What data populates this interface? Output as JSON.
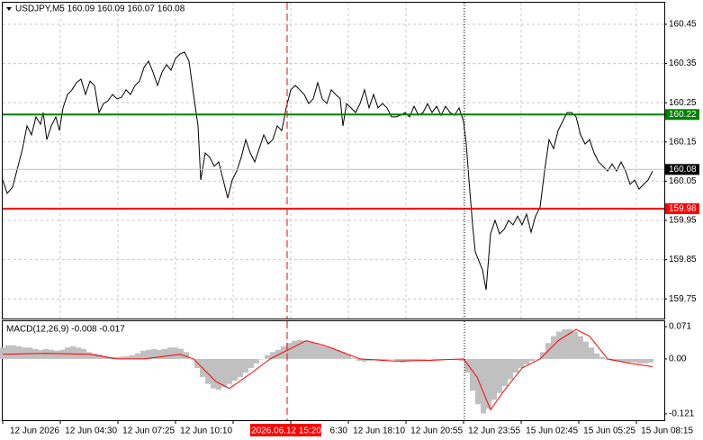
{
  "chart_data": [
    {
      "type": "line",
      "title": "USDJPY,M5  160.09 160.09 160.07 160.08",
      "color": "#000000",
      "x": [
        3,
        8,
        14,
        20,
        25,
        30,
        35,
        40,
        45,
        48,
        52,
        57,
        62,
        66,
        70,
        75,
        80,
        85,
        90,
        95,
        100,
        105,
        110,
        115,
        120,
        125,
        130,
        135,
        140,
        145,
        150,
        155,
        160,
        165,
        170,
        175,
        180,
        185,
        190,
        195,
        200,
        205,
        210,
        215,
        220,
        223,
        228,
        233,
        238,
        243,
        248,
        253,
        258,
        263,
        268,
        273,
        278,
        283,
        288,
        293,
        298,
        303,
        308,
        313,
        318,
        323,
        328,
        333,
        338,
        343,
        348,
        353,
        358,
        363,
        368,
        373,
        378,
        381,
        385,
        390,
        395,
        400,
        405,
        410,
        415,
        420,
        425,
        430,
        435,
        440,
        445,
        450,
        455,
        460,
        465,
        470,
        475,
        480,
        485,
        490,
        495,
        500,
        505,
        510,
        515,
        518,
        521,
        525,
        528,
        532,
        536,
        540,
        545,
        550,
        555,
        560,
        565,
        570,
        575,
        580,
        585,
        590,
        595,
        600,
        605,
        610,
        615,
        620,
        625,
        630,
        635,
        640,
        645,
        650,
        655,
        660,
        665,
        670,
        675,
        680,
        685,
        690,
        695,
        700,
        705,
        710,
        715,
        720,
        725
      ],
      "values": [
        160.053,
        160.019,
        160.035,
        160.088,
        160.133,
        160.191,
        160.168,
        160.214,
        160.195,
        160.225,
        160.156,
        160.191,
        160.214,
        160.179,
        160.237,
        160.271,
        160.283,
        160.301,
        160.31,
        160.271,
        160.305,
        160.294,
        160.225,
        160.248,
        160.255,
        160.271,
        160.26,
        160.264,
        160.283,
        160.271,
        160.294,
        160.305,
        160.34,
        160.356,
        160.328,
        160.294,
        160.328,
        160.347,
        160.333,
        160.363,
        160.374,
        160.379,
        160.356,
        160.271,
        160.191,
        160.053,
        160.122,
        160.111,
        160.088,
        160.099,
        160.053,
        160.007,
        160.053,
        160.076,
        160.111,
        160.156,
        160.122,
        160.099,
        160.133,
        160.168,
        160.145,
        160.156,
        160.191,
        160.179,
        160.237,
        160.283,
        160.294,
        160.283,
        160.271,
        160.248,
        160.26,
        160.301,
        160.26,
        160.248,
        160.283,
        160.271,
        160.26,
        160.191,
        160.248,
        160.237,
        160.225,
        160.248,
        160.283,
        160.237,
        160.271,
        160.237,
        160.248,
        160.237,
        160.214,
        160.214,
        160.218,
        160.225,
        160.214,
        160.241,
        160.218,
        160.225,
        160.248,
        160.225,
        160.241,
        160.218,
        160.241,
        160.225,
        160.218,
        160.237,
        160.202,
        160.145,
        160.053,
        159.939,
        159.87,
        159.847,
        159.824,
        159.773,
        159.916,
        159.95,
        159.916,
        159.927,
        159.95,
        159.939,
        159.961,
        159.939,
        159.966,
        159.92,
        159.961,
        159.984,
        160.076,
        160.156,
        160.133,
        160.179,
        160.202,
        160.225,
        160.225,
        160.214,
        160.168,
        160.145,
        160.156,
        160.122,
        160.099,
        160.088,
        160.076,
        160.094,
        160.076,
        160.099,
        160.076,
        160.042,
        160.053,
        160.03,
        160.042,
        160.053,
        160.076
      ],
      "xlim": [
        3,
        738
      ],
      "ylim": [
        159.7,
        160.505
      ],
      "yticks": [
        160.45,
        160.35,
        160.25,
        160.15,
        160.05,
        159.95,
        159.85,
        159.75
      ],
      "grid": true,
      "levels": [
        {
          "value": 160.22,
          "color": "#008000"
        },
        {
          "value": 159.98,
          "color": "#ff0000"
        },
        {
          "value": 160.08,
          "color": "#c0c0c0"
        }
      ],
      "x_labels": [
        "12 Jun 2026",
        "12 Jun 04:30",
        "12 Jun 07:25",
        "12 Jun 10:10",
        null,
        "6:30",
        "12 Jun 18:10",
        "12 Jun 20:55",
        "12 Jun 23:55",
        "15 Jun 02:45",
        "15 Jun 05:25",
        "15 Jun 08:15"
      ],
      "crosshair": {
        "x": 319,
        "label": "2026.06.12 15:20",
        "color": "#ff0000"
      },
      "separator_x": 516
    },
    {
      "type": "bar",
      "title": "MACD(12,26,9) -0.008 -0.017",
      "xlim": [
        3,
        738
      ],
      "ylim": [
        -0.135,
        0.083
      ],
      "yticks": [
        0.071,
        {
          "value": 0,
          "label": "0.00"
        },
        -0.121
      ],
      "series": [
        {
          "type": "bar",
          "color": "#c0c0c0",
          "x": [
            3,
            9,
            15,
            21,
            27,
            33,
            39,
            45,
            51,
            57,
            63,
            69,
            75,
            81,
            87,
            93,
            99,
            105,
            111,
            117,
            123,
            129,
            135,
            141,
            147,
            153,
            159,
            165,
            171,
            177,
            183,
            189,
            195,
            201,
            207,
            213,
            219,
            225,
            231,
            237,
            243,
            249,
            255,
            261,
            267,
            273,
            279,
            285,
            291,
            297,
            303,
            309,
            315,
            321,
            327,
            333,
            339,
            345,
            351,
            357,
            363,
            369,
            375,
            381,
            387,
            393,
            399,
            405,
            411,
            417,
            423,
            429,
            435,
            441,
            447,
            453,
            459,
            465,
            471,
            477,
            483,
            489,
            495,
            501,
            507,
            513,
            519,
            525,
            531,
            537,
            543,
            549,
            555,
            561,
            567,
            573,
            579,
            585,
            591,
            597,
            603,
            609,
            615,
            621,
            627,
            633,
            639,
            645,
            651,
            657,
            663,
            669,
            675,
            681,
            687,
            693,
            699,
            705,
            711,
            717,
            723
          ],
          "values": [
            0.025,
            0.03,
            0.03,
            0.028,
            0.025,
            0.025,
            0.022,
            0.02,
            0.022,
            0.02,
            0.018,
            0.02,
            0.025,
            0.028,
            0.025,
            0.022,
            0.015,
            0.012,
            0.01,
            0.006,
            0.004,
            0.004,
            0.005,
            0.006,
            0.008,
            0.012,
            0.018,
            0.02,
            0.022,
            0.02,
            0.022,
            0.025,
            0.025,
            0.022,
            0.015,
            0,
            -0.02,
            -0.04,
            -0.055,
            -0.065,
            -0.068,
            -0.062,
            -0.055,
            -0.048,
            -0.04,
            -0.03,
            -0.02,
            -0.01,
            0,
            0.008,
            0.015,
            0.02,
            0.028,
            0.035,
            0.04,
            0.042,
            0.04,
            0.038,
            0.035,
            0.03,
            0.028,
            0.025,
            0.02,
            0.015,
            0.01,
            0.002,
            -0.004,
            -0.006,
            -0.004,
            -0.002,
            -0.003,
            -0.002,
            0,
            -0.005,
            -0.008,
            -0.006,
            -0.004,
            -0.003,
            -0.002,
            0,
            -0.002,
            -0.003,
            -0.002,
            -0.001,
            -0.003,
            -0.005,
            -0.03,
            -0.07,
            -0.1,
            -0.12,
            -0.11,
            -0.09,
            -0.075,
            -0.06,
            -0.045,
            -0.03,
            -0.02,
            -0.012,
            -0.005,
            0,
            0.015,
            0.035,
            0.05,
            0.06,
            0.065,
            0.066,
            0.06,
            0.05,
            0.038,
            0.025,
            0.012,
            0.004,
            -0.002,
            -0.005,
            -0.005,
            -0.006,
            -0.008,
            -0.008,
            -0.01,
            -0.01,
            -0.008
          ]
        },
        {
          "type": "line",
          "color": "#ff0000",
          "x": [
            3,
            50,
            100,
            130,
            160,
            200,
            215,
            240,
            255,
            280,
            300,
            320,
            340,
            360,
            400,
            440,
            480,
            515,
            530,
            545,
            560,
            580,
            600,
            620,
            640,
            655,
            675,
            700,
            725
          ],
          "values": [
            0.01,
            0.012,
            0.01,
            0,
            0,
            0.01,
            0,
            -0.05,
            -0.065,
            -0.03,
            0,
            0.02,
            0.04,
            0.03,
            0,
            -0.005,
            -0.003,
            0,
            -0.04,
            -0.112,
            -0.07,
            -0.02,
            0,
            0.04,
            0.065,
            0.05,
            0,
            -0.01,
            -0.017
          ]
        }
      ]
    }
  ]
}
